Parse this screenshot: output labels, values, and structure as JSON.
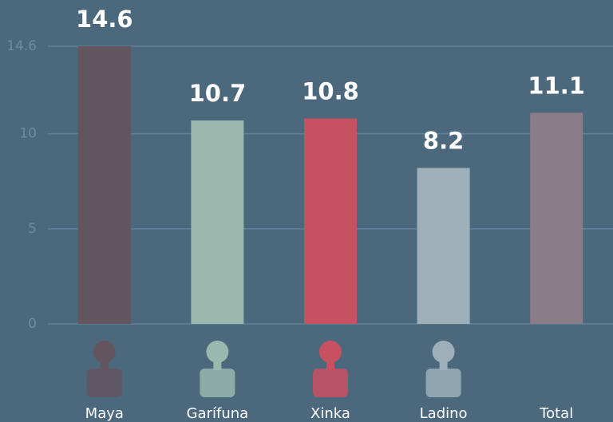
{
  "chart_data": {
    "type": "bar",
    "categories": [
      "Maya",
      "Garífuna",
      "Xinka",
      "Ladino",
      "Total"
    ],
    "values": [
      14.6,
      10.7,
      10.8,
      8.2,
      11.1
    ],
    "colors": [
      "#63555e",
      "#9ab8ad",
      "#c75161",
      "#9eafba",
      "#8a7d86"
    ],
    "ylim": [
      0,
      14.6
    ],
    "yticks": [
      0,
      5,
      10,
      14.6
    ],
    "grid": true
  }
}
